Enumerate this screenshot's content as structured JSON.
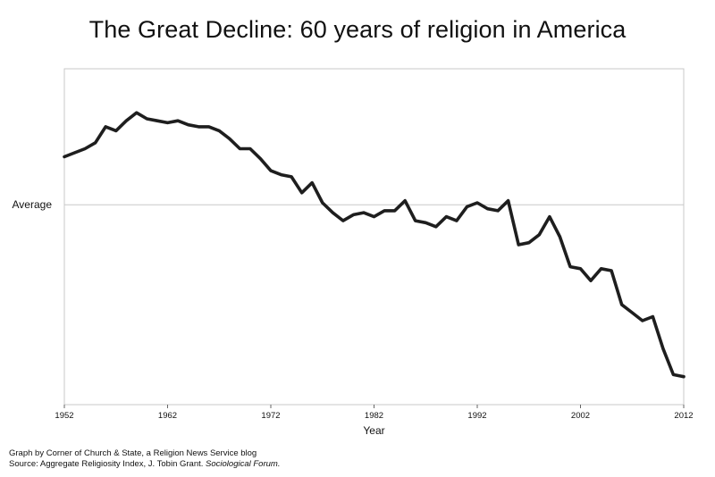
{
  "chart_data": {
    "type": "line",
    "title": "The Great Decline: 60 years of religion in America",
    "xlabel": "Year",
    "ylabel": "",
    "xlim": [
      1952,
      2012
    ],
    "ylim": [
      -1.0,
      0.68
    ],
    "x_ticks": [
      1952,
      1962,
      1972,
      1982,
      1992,
      2002,
      2012
    ],
    "y_reference": {
      "value": 0,
      "label": "Average"
    },
    "grid": {
      "vertical": false,
      "horizontal_reference_only": true
    },
    "legend": "none",
    "series": [
      {
        "x": [
          1952,
          1953,
          1954,
          1955,
          1956,
          1957,
          1958,
          1959,
          1960,
          1961,
          1962,
          1963,
          1964,
          1965,
          1966,
          1967,
          1968,
          1969,
          1970,
          1971,
          1972,
          1973,
          1974,
          1975,
          1976,
          1977,
          1978,
          1979,
          1980,
          1981,
          1982,
          1983,
          1984,
          1985,
          1986,
          1987,
          1988,
          1989,
          1990,
          1991,
          1992,
          1993,
          1994,
          1995,
          1996,
          1997,
          1998,
          1999,
          2000,
          2001,
          2002,
          2003,
          2004,
          2005,
          2006,
          2007,
          2008,
          2009,
          2010,
          2011,
          2012
        ],
        "values": [
          0.24,
          0.26,
          0.28,
          0.31,
          0.39,
          0.37,
          0.42,
          0.46,
          0.43,
          0.42,
          0.41,
          0.42,
          0.4,
          0.39,
          0.39,
          0.37,
          0.33,
          0.28,
          0.28,
          0.23,
          0.17,
          0.15,
          0.14,
          0.06,
          0.11,
          0.01,
          -0.04,
          -0.08,
          -0.05,
          -0.04,
          -0.06,
          -0.03,
          -0.03,
          0.02,
          -0.08,
          -0.09,
          -0.11,
          -0.06,
          -0.08,
          -0.01,
          0.01,
          -0.02,
          -0.03,
          0.02,
          -0.2,
          -0.19,
          -0.15,
          -0.06,
          -0.16,
          -0.31,
          -0.32,
          -0.38,
          -0.32,
          -0.33,
          -0.5,
          -0.54,
          -0.58,
          -0.56,
          -0.72,
          -0.85,
          -0.86
        ],
        "color": "#1e1e1e"
      }
    ],
    "colors": {
      "line": "#1e1e1e",
      "frame": "#c8c8c8",
      "reference": "#c8c8c8"
    }
  },
  "footer": {
    "line1": "Graph by Corner of Church & State, a Religion News Service blog",
    "line2_prefix": "Source: Aggregate Religiosity Index, J. Tobin Grant. ",
    "line2_journal": "Sociological Forum."
  }
}
